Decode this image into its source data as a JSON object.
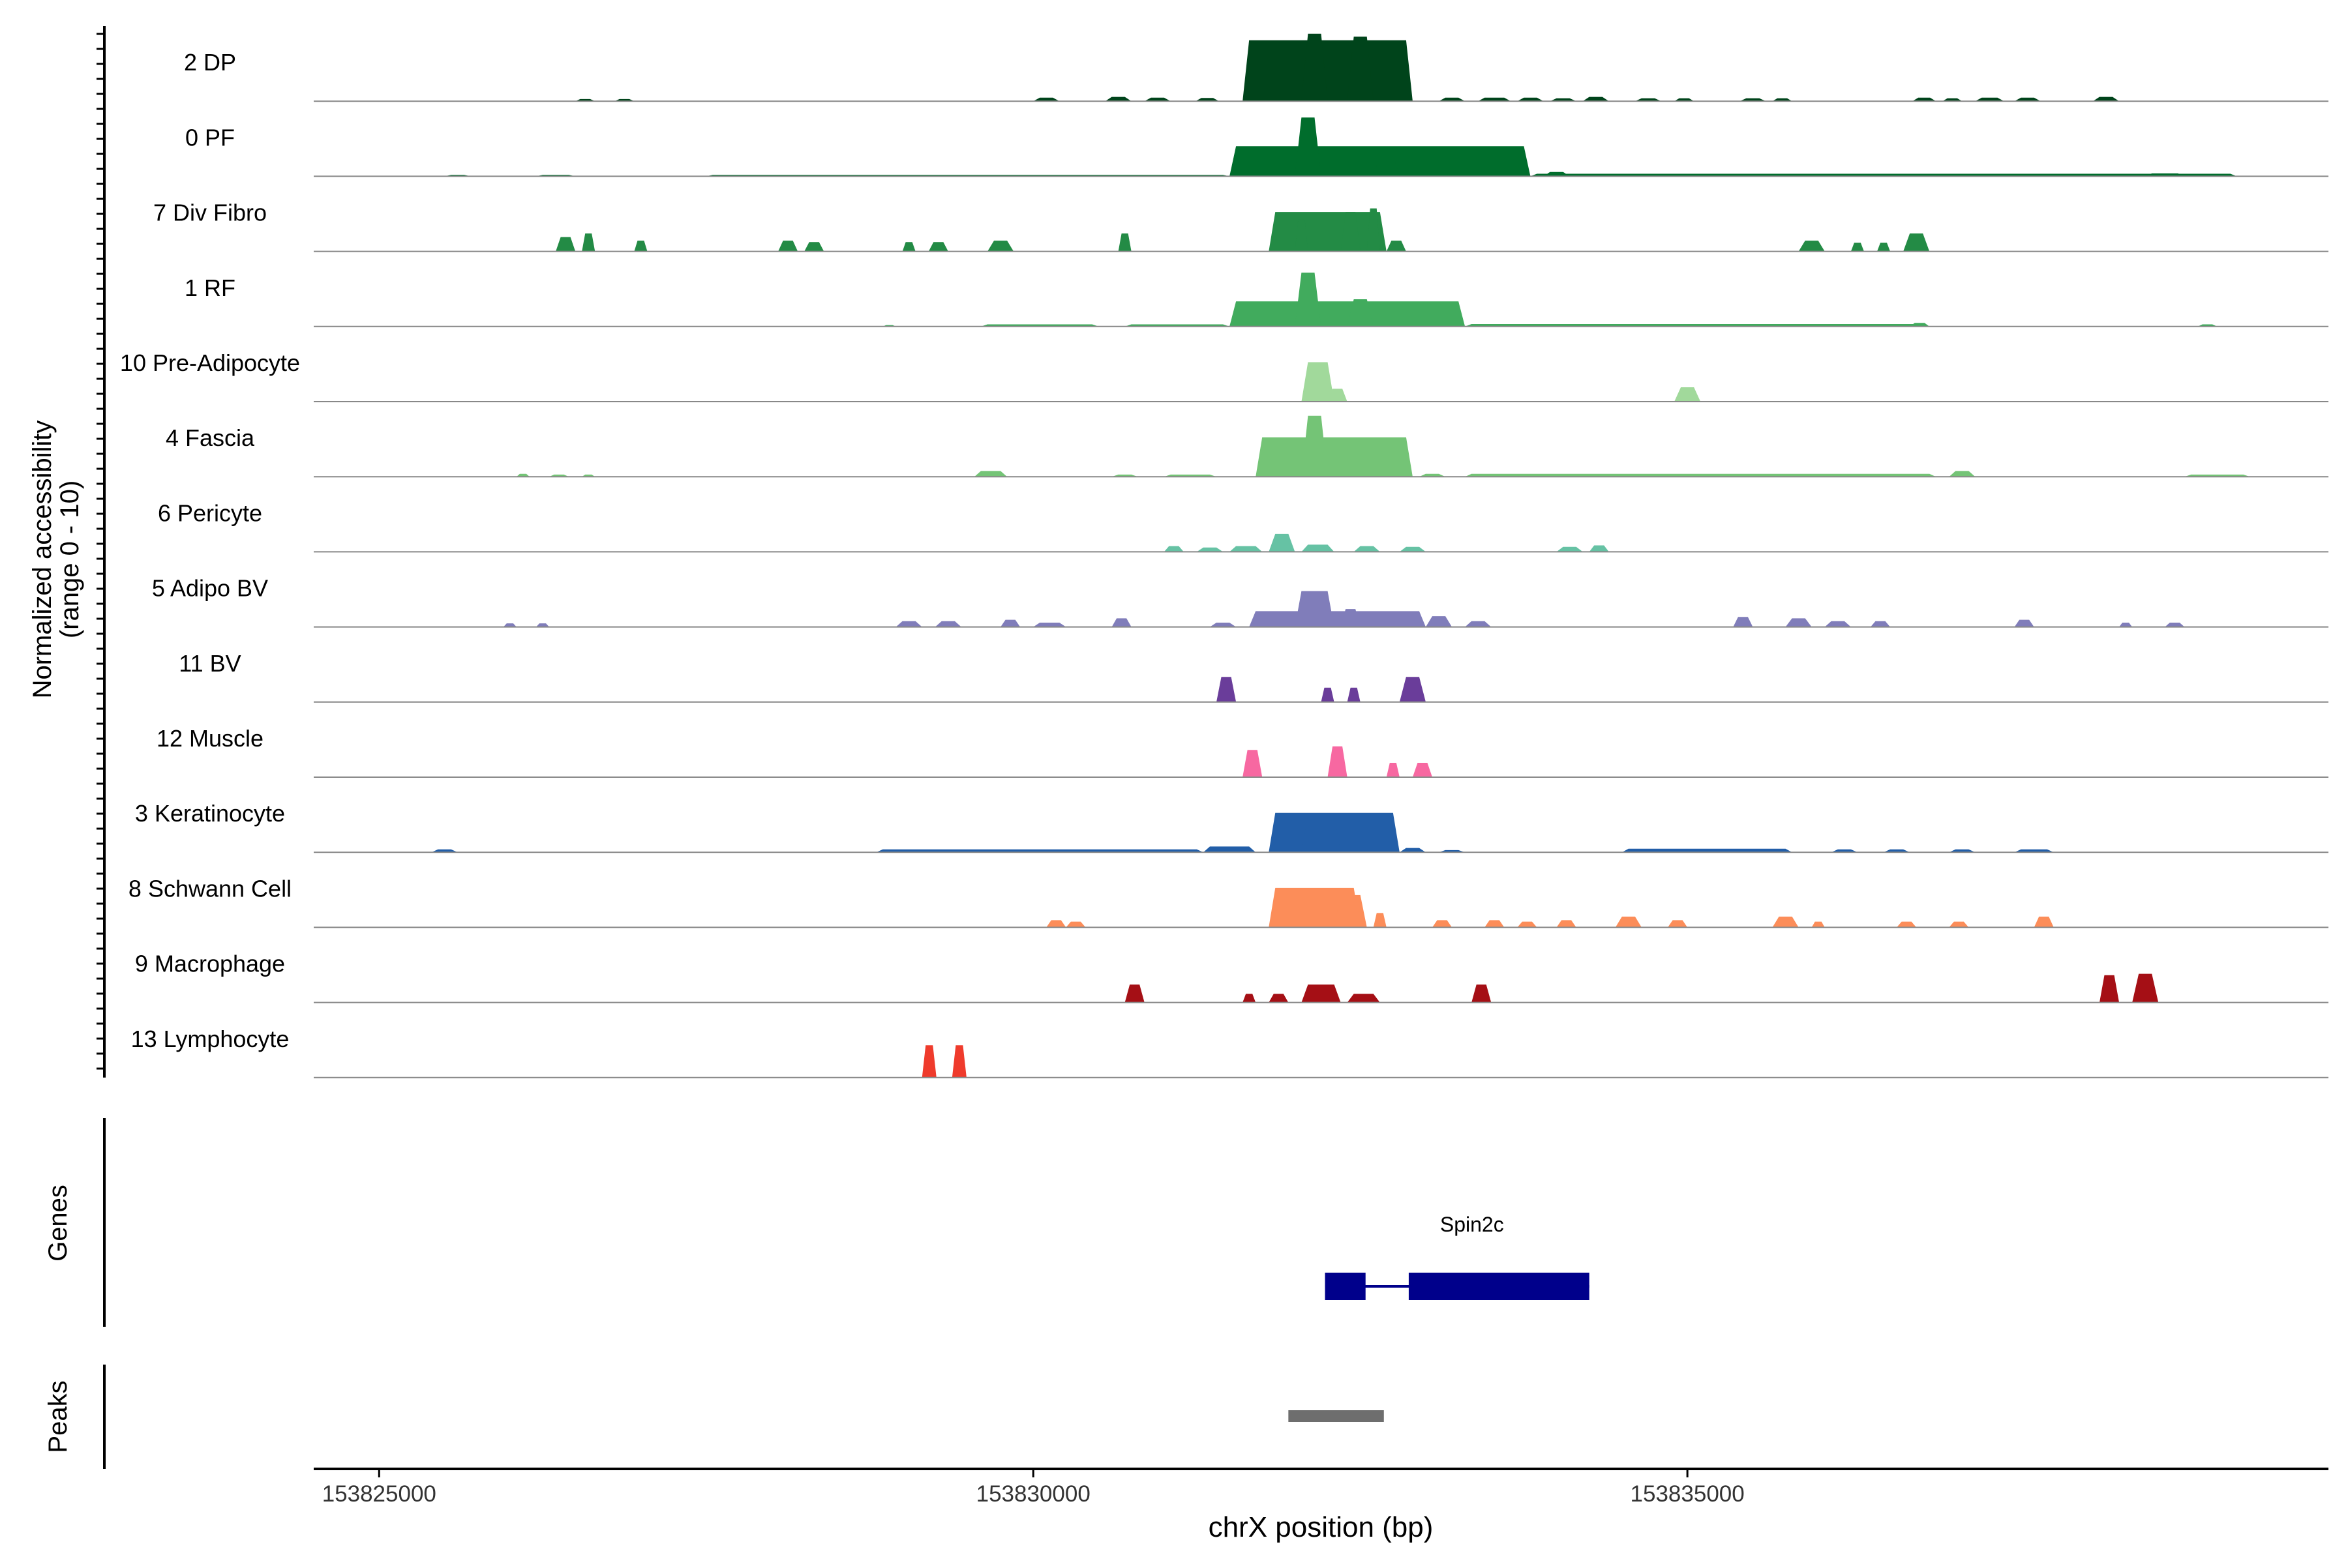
{
  "chart_data": {
    "type": "area",
    "title": "",
    "xlabel": "chrX position (bp)",
    "ylabel_line1": "Normalized accessibility",
    "ylabel_line2": "(range 0 - 10)",
    "xlim": [
      153824500,
      153839900
    ],
    "ylim": [
      0,
      10
    ],
    "x_ticks": [
      153825000,
      153830000,
      153835000
    ],
    "x_tick_labels": [
      "153825000",
      "153830000",
      "153835000"
    ],
    "genes_label": "Genes",
    "peaks_label": "Peaks",
    "baseline_color": "#888888",
    "tracks": [
      {
        "name": "2 DP",
        "color": "#00441b",
        "segments": [
          {
            "start": 153832230,
            "end": 153832400,
            "peak": 0.5
          },
          {
            "start": 153830000,
            "end": 153830200,
            "peak": 0.5
          },
          {
            "start": 153830550,
            "end": 153830750,
            "peak": 0.6
          },
          {
            "start": 153830850,
            "end": 153831050,
            "peak": 0.5
          },
          {
            "start": 153831240,
            "end": 153831420,
            "peak": 0.45
          },
          {
            "start": 153831530,
            "end": 153833100,
            "peak": 0.0
          },
          {
            "start": 153831600,
            "end": 153832900,
            "peak": 8.5
          },
          {
            "start": 153832050,
            "end": 153832250,
            "peak": 9.4
          },
          {
            "start": 153832400,
            "end": 153832600,
            "peak": 9.0
          },
          {
            "start": 153833100,
            "end": 153833300,
            "peak": 0.5
          },
          {
            "start": 153833400,
            "end": 153833650,
            "peak": 0.5
          },
          {
            "start": 153833700,
            "end": 153833900,
            "peak": 0.5
          },
          {
            "start": 153833950,
            "end": 153834150,
            "peak": 0.4
          },
          {
            "start": 153834200,
            "end": 153834400,
            "peak": 0.6
          },
          {
            "start": 153834600,
            "end": 153834800,
            "peak": 0.4
          },
          {
            "start": 153834900,
            "end": 153835050,
            "peak": 0.4
          },
          {
            "start": 153835400,
            "end": 153835600,
            "peak": 0.4
          },
          {
            "start": 153835650,
            "end": 153835800,
            "peak": 0.4
          },
          {
            "start": 153836720,
            "end": 153836900,
            "peak": 0.5
          },
          {
            "start": 153836950,
            "end": 153837100,
            "peak": 0.4
          },
          {
            "start": 153837200,
            "end": 153837420,
            "peak": 0.5
          },
          {
            "start": 153837500,
            "end": 153837700,
            "peak": 0.5
          },
          {
            "start": 153838100,
            "end": 153838300,
            "peak": 0.6
          },
          {
            "start": 153826500,
            "end": 153826650,
            "peak": 0.3
          },
          {
            "start": 153826800,
            "end": 153826950,
            "peak": 0.3
          }
        ]
      },
      {
        "name": "0 PF",
        "color": "#006d2c",
        "segments": [
          {
            "start": 153825500,
            "end": 153825700,
            "peak": 0.2
          },
          {
            "start": 153826200,
            "end": 153826500,
            "peak": 0.2
          },
          {
            "start": 153827500,
            "end": 153831500,
            "peak": 0.2
          },
          {
            "start": 153831500,
            "end": 153833800,
            "peak": 4.2
          },
          {
            "start": 153832000,
            "end": 153832200,
            "peak": 8.2
          },
          {
            "start": 153832600,
            "end": 153832800,
            "peak": 3.0
          },
          {
            "start": 153833800,
            "end": 153839200,
            "peak": 0.35
          },
          {
            "start": 153833900,
            "end": 153834100,
            "peak": 0.6
          },
          {
            "start": 153838500,
            "end": 153838800,
            "peak": 0.4
          }
        ]
      },
      {
        "name": "7 Div Fibro",
        "color": "#238b45",
        "segments": [
          {
            "start": 153826350,
            "end": 153826500,
            "peak": 2.0
          },
          {
            "start": 153826550,
            "end": 153826650,
            "peak": 2.5
          },
          {
            "start": 153826950,
            "end": 153827050,
            "peak": 1.5
          },
          {
            "start": 153828050,
            "end": 153828200,
            "peak": 1.5
          },
          {
            "start": 153828250,
            "end": 153828400,
            "peak": 1.3
          },
          {
            "start": 153829000,
            "end": 153829100,
            "peak": 1.3
          },
          {
            "start": 153829200,
            "end": 153829350,
            "peak": 1.3
          },
          {
            "start": 153829650,
            "end": 153829850,
            "peak": 1.5
          },
          {
            "start": 153830650,
            "end": 153830750,
            "peak": 2.5
          },
          {
            "start": 153831800,
            "end": 153832700,
            "peak": 5.5
          },
          {
            "start": 153832000,
            "end": 153832100,
            "peak": 4.5
          },
          {
            "start": 153832350,
            "end": 153832500,
            "peak": 5.5
          },
          {
            "start": 153832550,
            "end": 153832650,
            "peak": 6.0
          },
          {
            "start": 153832700,
            "end": 153832850,
            "peak": 1.5
          },
          {
            "start": 153835850,
            "end": 153836050,
            "peak": 1.5
          },
          {
            "start": 153836250,
            "end": 153836350,
            "peak": 1.2
          },
          {
            "start": 153836450,
            "end": 153836550,
            "peak": 1.2
          },
          {
            "start": 153836650,
            "end": 153836850,
            "peak": 2.5
          }
        ]
      },
      {
        "name": "1 RF",
        "color": "#41ab5d",
        "segments": [
          {
            "start": 153828850,
            "end": 153828950,
            "peak": 0.2
          },
          {
            "start": 153829600,
            "end": 153830500,
            "peak": 0.3
          },
          {
            "start": 153830700,
            "end": 153831500,
            "peak": 0.3
          },
          {
            "start": 153831500,
            "end": 153833300,
            "peak": 3.5
          },
          {
            "start": 153832000,
            "end": 153832200,
            "peak": 7.5
          },
          {
            "start": 153832400,
            "end": 153832600,
            "peak": 3.8
          },
          {
            "start": 153833300,
            "end": 153836800,
            "peak": 0.35
          },
          {
            "start": 153836700,
            "end": 153836850,
            "peak": 0.5
          },
          {
            "start": 153838900,
            "end": 153839050,
            "peak": 0.3
          }
        ]
      },
      {
        "name": "10 Pre-Adipocyte",
        "color": "#a1d99b",
        "segments": [
          {
            "start": 153832050,
            "end": 153832300,
            "peak": 5.5
          },
          {
            "start": 153832250,
            "end": 153832400,
            "peak": 1.8
          },
          {
            "start": 153834900,
            "end": 153835100,
            "peak": 2.0
          }
        ]
      },
      {
        "name": "4 Fascia",
        "color": "#74c476",
        "segments": [
          {
            "start": 153826050,
            "end": 153826150,
            "peak": 0.4
          },
          {
            "start": 153826300,
            "end": 153826450,
            "peak": 0.3
          },
          {
            "start": 153826550,
            "end": 153826650,
            "peak": 0.3
          },
          {
            "start": 153829550,
            "end": 153829800,
            "peak": 0.8
          },
          {
            "start": 153830600,
            "end": 153830800,
            "peak": 0.3
          },
          {
            "start": 153831000,
            "end": 153831400,
            "peak": 0.3
          },
          {
            "start": 153831700,
            "end": 153832900,
            "peak": 5.5
          },
          {
            "start": 153832050,
            "end": 153832250,
            "peak": 8.5
          },
          {
            "start": 153832450,
            "end": 153832650,
            "peak": 5.0
          },
          {
            "start": 153832950,
            "end": 153833150,
            "peak": 0.4
          },
          {
            "start": 153833300,
            "end": 153836900,
            "peak": 0.4
          },
          {
            "start": 153837000,
            "end": 153837200,
            "peak": 0.8
          },
          {
            "start": 153838800,
            "end": 153839300,
            "peak": 0.3
          }
        ]
      },
      {
        "name": "6 Pericyte",
        "color": "#66c2a4",
        "segments": [
          {
            "start": 153831000,
            "end": 153831150,
            "peak": 0.8
          },
          {
            "start": 153831250,
            "end": 153831450,
            "peak": 0.6
          },
          {
            "start": 153831500,
            "end": 153831750,
            "peak": 0.8
          },
          {
            "start": 153831800,
            "end": 153832000,
            "peak": 2.5
          },
          {
            "start": 153832050,
            "end": 153832300,
            "peak": 1.0
          },
          {
            "start": 153832450,
            "end": 153832650,
            "peak": 0.8
          },
          {
            "start": 153832800,
            "end": 153833000,
            "peak": 0.7
          },
          {
            "start": 153834000,
            "end": 153834200,
            "peak": 0.7
          },
          {
            "start": 153834250,
            "end": 153834400,
            "peak": 0.9
          }
        ]
      },
      {
        "name": "5 Adipo BV",
        "color": "#807dba",
        "segments": [
          {
            "start": 153825950,
            "end": 153826050,
            "peak": 0.5
          },
          {
            "start": 153826200,
            "end": 153826300,
            "peak": 0.5
          },
          {
            "start": 153828950,
            "end": 153829150,
            "peak": 0.8
          },
          {
            "start": 153829250,
            "end": 153829450,
            "peak": 0.8
          },
          {
            "start": 153829750,
            "end": 153829900,
            "peak": 1.0
          },
          {
            "start": 153830000,
            "end": 153830250,
            "peak": 0.6
          },
          {
            "start": 153830600,
            "end": 153830750,
            "peak": 1.2
          },
          {
            "start": 153831350,
            "end": 153831550,
            "peak": 0.6
          },
          {
            "start": 153831650,
            "end": 153833000,
            "peak": 2.2
          },
          {
            "start": 153832000,
            "end": 153832300,
            "peak": 5.0
          },
          {
            "start": 153832350,
            "end": 153832500,
            "peak": 2.5
          },
          {
            "start": 153833000,
            "end": 153833200,
            "peak": 1.5
          },
          {
            "start": 153833300,
            "end": 153833500,
            "peak": 0.8
          },
          {
            "start": 153835350,
            "end": 153835500,
            "peak": 1.4
          },
          {
            "start": 153835750,
            "end": 153835950,
            "peak": 1.2
          },
          {
            "start": 153836050,
            "end": 153836250,
            "peak": 0.8
          },
          {
            "start": 153836400,
            "end": 153836550,
            "peak": 0.8
          },
          {
            "start": 153837500,
            "end": 153837650,
            "peak": 1.0
          },
          {
            "start": 153838300,
            "end": 153838400,
            "peak": 0.6
          },
          {
            "start": 153838650,
            "end": 153838800,
            "peak": 0.6
          }
        ]
      },
      {
        "name": "11 BV",
        "color": "#6a3d9a",
        "segments": [
          {
            "start": 153831400,
            "end": 153831550,
            "peak": 3.5
          },
          {
            "start": 153832200,
            "end": 153832300,
            "peak": 2.0
          },
          {
            "start": 153832400,
            "end": 153832500,
            "peak": 2.0
          },
          {
            "start": 153832800,
            "end": 153833000,
            "peak": 3.5
          }
        ]
      },
      {
        "name": "12 Muscle",
        "color": "#f768a1",
        "segments": [
          {
            "start": 153831600,
            "end": 153831750,
            "peak": 3.8
          },
          {
            "start": 153832250,
            "end": 153832400,
            "peak": 4.3
          },
          {
            "start": 153832700,
            "end": 153832800,
            "peak": 2.0
          },
          {
            "start": 153832900,
            "end": 153833050,
            "peak": 2.0
          }
        ]
      },
      {
        "name": "3 Keratinocyte",
        "color": "#225ea8",
        "segments": [
          {
            "start": 153825400,
            "end": 153825600,
            "peak": 0.4
          },
          {
            "start": 153828800,
            "end": 153831300,
            "peak": 0.4
          },
          {
            "start": 153831300,
            "end": 153831700,
            "peak": 0.8
          },
          {
            "start": 153831800,
            "end": 153832800,
            "peak": 5.5
          },
          {
            "start": 153832050,
            "end": 153832350,
            "peak": 5.2
          },
          {
            "start": 153832800,
            "end": 153833000,
            "peak": 0.6
          },
          {
            "start": 153833100,
            "end": 153833300,
            "peak": 0.3
          },
          {
            "start": 153834500,
            "end": 153835800,
            "peak": 0.5
          },
          {
            "start": 153836100,
            "end": 153836300,
            "peak": 0.4
          },
          {
            "start": 153836500,
            "end": 153836700,
            "peak": 0.4
          },
          {
            "start": 153837000,
            "end": 153837200,
            "peak": 0.4
          },
          {
            "start": 153837500,
            "end": 153837800,
            "peak": 0.4
          }
        ]
      },
      {
        "name": "8 Schwann Cell",
        "color": "#fc8d59",
        "segments": [
          {
            "start": 153830100,
            "end": 153830250,
            "peak": 1.0
          },
          {
            "start": 153830250,
            "end": 153830400,
            "peak": 0.8
          },
          {
            "start": 153831800,
            "end": 153832500,
            "peak": 5.5
          },
          {
            "start": 153832300,
            "end": 153832550,
            "peak": 4.5
          },
          {
            "start": 153832600,
            "end": 153832700,
            "peak": 2.0
          },
          {
            "start": 153833050,
            "end": 153833200,
            "peak": 1.0
          },
          {
            "start": 153833450,
            "end": 153833600,
            "peak": 1.0
          },
          {
            "start": 153833700,
            "end": 153833850,
            "peak": 0.8
          },
          {
            "start": 153834000,
            "end": 153834150,
            "peak": 1.0
          },
          {
            "start": 153834450,
            "end": 153834650,
            "peak": 1.5
          },
          {
            "start": 153834850,
            "end": 153835000,
            "peak": 1.0
          },
          {
            "start": 153835650,
            "end": 153835850,
            "peak": 1.5
          },
          {
            "start": 153835950,
            "end": 153836050,
            "peak": 0.8
          },
          {
            "start": 153836600,
            "end": 153836750,
            "peak": 0.8
          },
          {
            "start": 153837000,
            "end": 153837150,
            "peak": 0.8
          },
          {
            "start": 153837650,
            "end": 153837800,
            "peak": 1.5
          }
        ]
      },
      {
        "name": "9 Macrophage",
        "color": "#a50f15",
        "segments": [
          {
            "start": 153830700,
            "end": 153830850,
            "peak": 2.5
          },
          {
            "start": 153831600,
            "end": 153831700,
            "peak": 1.2
          },
          {
            "start": 153831800,
            "end": 153831950,
            "peak": 1.2
          },
          {
            "start": 153832050,
            "end": 153832350,
            "peak": 2.5
          },
          {
            "start": 153832400,
            "end": 153832650,
            "peak": 1.2
          },
          {
            "start": 153833350,
            "end": 153833500,
            "peak": 2.5
          },
          {
            "start": 153838150,
            "end": 153838300,
            "peak": 3.8
          },
          {
            "start": 153838400,
            "end": 153838600,
            "peak": 4.0
          }
        ]
      },
      {
        "name": "13 Lymphocyte",
        "color": "#ef3b2c",
        "segments": [
          {
            "start": 153829150,
            "end": 153829260,
            "peak": 4.5
          },
          {
            "start": 153829380,
            "end": 153829490,
            "peak": 4.5
          }
        ]
      }
    ],
    "genes": [
      {
        "name": "Spin2c",
        "strand": "-",
        "start": 153832230,
        "end": 153834250,
        "exons": [
          [
            153832230,
            153832540
          ],
          [
            153832870,
            153834250
          ]
        ]
      }
    ],
    "peaks": [
      {
        "start": 153831950,
        "end": 153832680
      }
    ]
  }
}
